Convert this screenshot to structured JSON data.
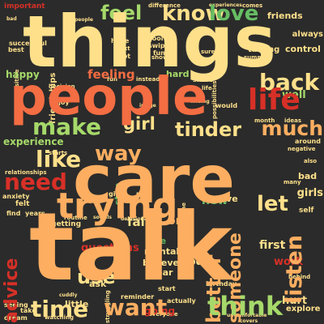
{
  "palette": {
    "cream": "#fee08b",
    "peach": "#fdae61",
    "light_green": "#a6d96a",
    "green": "#66bd63",
    "dark_green": "#1a9850",
    "red": "#d73027",
    "dark_red": "#a50026",
    "orange": "#f46d43",
    "pale": "#d9ef8b",
    "background": "#2b2b2b"
  },
  "words": [
    {
      "text": "things",
      "color": "cream",
      "tier": 1
    },
    {
      "text": "people",
      "color": "orange",
      "tier": 1
    },
    {
      "text": "care",
      "color": "peach",
      "tier": 1
    },
    {
      "text": "talk",
      "color": "peach",
      "tier": 1
    },
    {
      "text": "life",
      "color": "red",
      "tier": 2
    },
    {
      "text": "trying",
      "color": "peach",
      "tier": 2
    },
    {
      "text": "feel",
      "color": "light_green",
      "tier": 3
    },
    {
      "text": "know",
      "color": "cream",
      "tier": 3
    },
    {
      "text": "love",
      "color": "green",
      "tier": 3
    },
    {
      "text": "make",
      "color": "light_green",
      "tier": 3
    },
    {
      "text": "girl",
      "color": "cream",
      "tier": 3
    },
    {
      "text": "tinder",
      "color": "cream",
      "tier": 3
    },
    {
      "text": "much",
      "color": "peach",
      "tier": 3
    },
    {
      "text": "back",
      "color": "cream",
      "tier": 3
    },
    {
      "text": "like",
      "color": "cream",
      "tier": 3
    },
    {
      "text": "way",
      "color": "peach",
      "tier": 3
    },
    {
      "text": "need",
      "color": "red",
      "tier": 3
    },
    {
      "text": "someone",
      "color": "peach",
      "tier": 3
    },
    {
      "text": "let",
      "color": "cream",
      "tier": 3
    },
    {
      "text": "listen",
      "color": "peach",
      "tier": 3
    },
    {
      "text": "better",
      "color": "peach",
      "tier": 3
    },
    {
      "text": "advice",
      "color": "red",
      "tier": 3
    },
    {
      "text": "time",
      "color": "cream",
      "tier": 3
    },
    {
      "text": "want",
      "color": "peach",
      "tier": 3
    },
    {
      "text": "think",
      "color": "light_green",
      "tier": 3
    },
    {
      "text": "use",
      "color": "cream",
      "tier": 3
    },
    {
      "text": "feeling",
      "color": "orange",
      "tier": 4
    },
    {
      "text": "happy",
      "color": "light_green",
      "tier": 4
    },
    {
      "text": "well",
      "color": "light_green",
      "tier": 4
    },
    {
      "text": "experience",
      "color": "light_green",
      "tier": 4
    },
    {
      "text": "girls",
      "color": "cream",
      "tier": 4
    },
    {
      "text": "first",
      "color": "cream",
      "tier": 4
    },
    {
      "text": "fall",
      "color": "cream",
      "tier": 4
    },
    {
      "text": "questions",
      "color": "red",
      "tier": 4
    },
    {
      "text": "code",
      "color": "cream",
      "tier": 4
    },
    {
      "text": "work",
      "color": "red",
      "tier": 4
    },
    {
      "text": "new",
      "color": "green",
      "tier": 4
    },
    {
      "text": "one",
      "color": "peach",
      "tier": 4
    },
    {
      "text": "friends",
      "color": "cream",
      "tier": 5
    },
    {
      "text": "friendships",
      "color": "cream",
      "tier": 5
    },
    {
      "text": "control",
      "color": "cream",
      "tier": 5
    },
    {
      "text": "always",
      "color": "cream",
      "tier": 5
    },
    {
      "text": "talking",
      "color": "cream",
      "tier": 5
    },
    {
      "text": "hard",
      "color": "light_green",
      "tier": 5
    },
    {
      "text": "stop",
      "color": "green",
      "tier": 5
    },
    {
      "text": "free",
      "color": "green",
      "tier": 5
    },
    {
      "text": "mental",
      "color": "cream",
      "tier": 5
    },
    {
      "text": "believe",
      "color": "cream",
      "tier": 5
    },
    {
      "text": "year",
      "color": "cream",
      "tier": 5
    },
    {
      "text": "ask",
      "color": "cream",
      "tier": 5
    },
    {
      "text": "going",
      "color": "red",
      "tier": 5
    },
    {
      "text": "little",
      "color": "cream",
      "tier": 5
    },
    {
      "text": "hurt",
      "color": "cream",
      "tier": 5
    },
    {
      "text": "explore",
      "color": "cream",
      "tier": 5
    },
    {
      "text": "move",
      "color": "cream",
      "tier": 5
    },
    {
      "text": "bad",
      "color": "cream",
      "tier": 5
    },
    {
      "text": "people",
      "color": "cream",
      "tier": 6
    },
    {
      "text": "cool",
      "color": "cream",
      "tier": 6
    },
    {
      "text": "swipe",
      "color": "cream",
      "tier": 6
    },
    {
      "text": "funk",
      "color": "cream",
      "tier": 6
    },
    {
      "text": "show",
      "color": "cream",
      "tier": 6
    },
    {
      "text": "sure",
      "color": "cream",
      "tier": 6
    },
    {
      "text": "important",
      "color": "red",
      "tier": 6
    },
    {
      "text": "difference",
      "color": "cream",
      "tier": 6
    },
    {
      "text": "experiences",
      "color": "cream",
      "tier": 6
    },
    {
      "text": "comes",
      "color": "cream",
      "tier": 6
    },
    {
      "text": "hope",
      "color": "cream",
      "tier": 6
    },
    {
      "text": "next",
      "color": "cream",
      "tier": 6
    },
    {
      "text": "hot",
      "color": "cream",
      "tier": 6
    },
    {
      "text": "fun",
      "color": "cream",
      "tier": 6
    },
    {
      "text": "possibilities",
      "color": "cream",
      "tier": 6
    },
    {
      "text": "summer",
      "color": "cream",
      "tier": 6
    },
    {
      "text": "instead",
      "color": "cream",
      "tier": 6
    },
    {
      "text": "share",
      "color": "cream",
      "tier": 6
    },
    {
      "text": "life",
      "color": "cream",
      "tier": 6
    },
    {
      "text": "enjoy",
      "color": "cream",
      "tier": 6
    },
    {
      "text": "image",
      "color": "cream",
      "tier": 6
    },
    {
      "text": "finding",
      "color": "cream",
      "tier": 6
    },
    {
      "text": "would",
      "color": "cream",
      "tier": 6
    },
    {
      "text": "month",
      "color": "cream",
      "tier": 6
    },
    {
      "text": "ideas",
      "color": "cream",
      "tier": 6
    },
    {
      "text": "around",
      "color": "cream",
      "tier": 6
    },
    {
      "text": "also",
      "color": "cream",
      "tier": 6
    },
    {
      "text": "many",
      "color": "cream",
      "tier": 6
    },
    {
      "text": "self",
      "color": "cream",
      "tier": 6
    },
    {
      "text": "felt",
      "color": "cream",
      "tier": 6
    },
    {
      "text": "find",
      "color": "cream",
      "tier": 6
    },
    {
      "text": "years",
      "color": "cream",
      "tier": 6
    },
    {
      "text": "anxiety",
      "color": "cream",
      "tier": 6
    },
    {
      "text": "relationships",
      "color": "cream",
      "tier": 6
    },
    {
      "text": "starts",
      "color": "cream",
      "tier": 6
    },
    {
      "text": "give",
      "color": "cream",
      "tier": 6
    },
    {
      "text": "past",
      "color": "cream",
      "tier": 6
    },
    {
      "text": "routine",
      "color": "cream",
      "tier": 6
    },
    {
      "text": "socials",
      "color": "cream",
      "tier": 6
    },
    {
      "text": "getting",
      "color": "cream",
      "tier": 6
    },
    {
      "text": "delusional",
      "color": "cream",
      "tier": 6
    },
    {
      "text": "syndrome",
      "color": "cream",
      "tier": 6
    },
    {
      "text": "birthday",
      "color": "cream",
      "tier": 6
    },
    {
      "text": "behind",
      "color": "cream",
      "tier": 6
    },
    {
      "text": "start",
      "color": "cream",
      "tier": 6
    },
    {
      "text": "reminder",
      "color": "cream",
      "tier": 6
    },
    {
      "text": "actually",
      "color": "cream",
      "tier": 6
    },
    {
      "text": "everyone",
      "color": "cream",
      "tier": 6
    },
    {
      "text": "struggling",
      "color": "cream",
      "tier": 6
    },
    {
      "text": "seeing",
      "color": "cream",
      "tier": 6
    },
    {
      "text": "take",
      "color": "cream",
      "tier": 6
    },
    {
      "text": "watching",
      "color": "cream",
      "tier": 6
    },
    {
      "text": "uncomfortable",
      "color": "cream",
      "tier": 6
    },
    {
      "text": "covers",
      "color": "cream",
      "tier": 6
    },
    {
      "text": "dream",
      "color": "cream",
      "tier": 6
    },
    {
      "text": "cuddly",
      "color": "cream",
      "tier": 6
    },
    {
      "text": "decision",
      "color": "cream",
      "tier": 6
    },
    {
      "text": "successful",
      "color": "cream",
      "tier": 6
    },
    {
      "text": "best",
      "color": "cream",
      "tier": 6
    },
    {
      "text": "positive",
      "color": "cream",
      "tier": 6
    },
    {
      "text": "negative",
      "color": "cream",
      "tier": 6
    },
    {
      "text": "good",
      "color": "cream",
      "tier": 6
    }
  ]
}
